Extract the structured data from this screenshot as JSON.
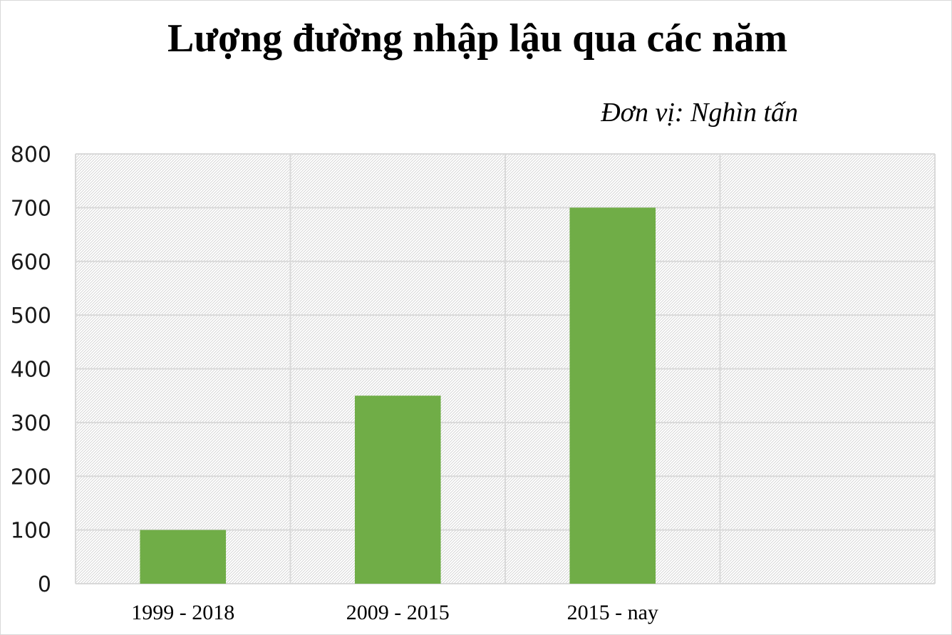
{
  "chart_data": {
    "type": "bar",
    "title": "Lượng đường nhập lậu qua các năm",
    "unit_label": "Đơn vị: Nghìn tấn",
    "categories": [
      "1999 - 2018",
      "2009 - 2015",
      "2015 - nay",
      ""
    ],
    "values": [
      100,
      350,
      700,
      null
    ],
    "ylim": [
      0,
      800
    ],
    "yticks": [
      0,
      100,
      200,
      300,
      400,
      500,
      600,
      700,
      800
    ],
    "grid": true,
    "legend": "none",
    "colors": {
      "bar": "#70ad47",
      "grid": "#d9d9d9",
      "plot_bg": "#ffffff",
      "hatch": "#c8c8c8"
    }
  }
}
